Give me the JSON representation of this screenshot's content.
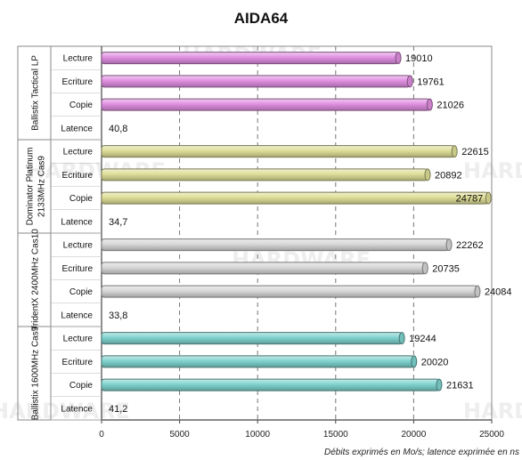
{
  "chart_data": {
    "type": "bar",
    "orientation": "horizontal",
    "title": "AIDA64",
    "xlabel": "Débits exprimés en Mo/s; latence exprimée en ns",
    "xlim": [
      0,
      25000
    ],
    "xticks": [
      "0",
      "5000",
      "10000",
      "15000",
      "20000",
      "25000"
    ],
    "grid": true,
    "groups": [
      {
        "name": "Ballistix Tactical LP",
        "color": "#e08fe0",
        "bars": [
          {
            "label": "Lecture",
            "value": 19010,
            "display": "19010"
          },
          {
            "label": "Ecriture",
            "value": 19761,
            "display": "19761"
          },
          {
            "label": "Copie",
            "value": 21026,
            "display": "21026"
          },
          {
            "label": "Latence",
            "value": 40.8,
            "display": "40,8"
          }
        ]
      },
      {
        "name": "Dominator Platinum 2133MHz Cas9",
        "color": "#dede98",
        "bars": [
          {
            "label": "Lecture",
            "value": 22615,
            "display": "22615"
          },
          {
            "label": "Ecriture",
            "value": 20892,
            "display": "20892"
          },
          {
            "label": "Copie",
            "value": 24787,
            "display": "24787"
          },
          {
            "label": "Latence",
            "value": 34.7,
            "display": "34,7"
          }
        ]
      },
      {
        "name": "TridentX 2400MHz Cas10",
        "color": "#d7d7d7",
        "bars": [
          {
            "label": "Lecture",
            "value": 22262,
            "display": "22262"
          },
          {
            "label": "Ecriture",
            "value": 20735,
            "display": "20735"
          },
          {
            "label": "Copie",
            "value": 24084,
            "display": "24084"
          },
          {
            "label": "Latence",
            "value": 33.8,
            "display": "33,8"
          }
        ]
      },
      {
        "name": "Ballistix 1600MHz Cas9",
        "color": "#7fd3cf",
        "bars": [
          {
            "label": "Lecture",
            "value": 19244,
            "display": "19244"
          },
          {
            "label": "Ecriture",
            "value": 20020,
            "display": "20020"
          },
          {
            "label": "Copie",
            "value": 21631,
            "display": "21631"
          },
          {
            "label": "Latence",
            "value": 41.2,
            "display": "41,2"
          }
        ]
      }
    ]
  }
}
